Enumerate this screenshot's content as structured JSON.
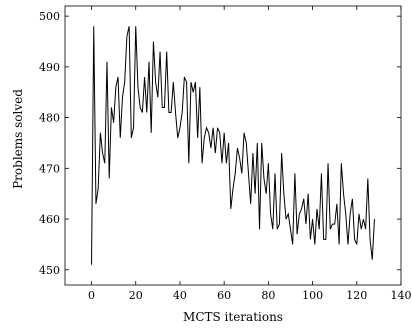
{
  "chart_data": {
    "type": "line",
    "title": "",
    "xlabel": "MCTS iterations",
    "ylabel": "Problems solved",
    "xlim": [
      -12,
      140
    ],
    "ylim": [
      447,
      502
    ],
    "xticks": [
      0,
      20,
      40,
      60,
      80,
      100,
      120,
      140
    ],
    "yticks": [
      450,
      460,
      470,
      480,
      490,
      500
    ],
    "grid": false,
    "series": [
      {
        "color": "#000000",
        "x": [
          0,
          1,
          2,
          3,
          4,
          5,
          6,
          7,
          8,
          9,
          10,
          11,
          12,
          13,
          14,
          15,
          16,
          17,
          18,
          19,
          20,
          21,
          22,
          23,
          24,
          25,
          26,
          27,
          28,
          29,
          30,
          31,
          32,
          33,
          34,
          35,
          36,
          37,
          38,
          39,
          40,
          41,
          42,
          43,
          44,
          45,
          46,
          47,
          48,
          49,
          50,
          51,
          52,
          53,
          54,
          55,
          56,
          57,
          58,
          59,
          60,
          61,
          62,
          63,
          64,
          65,
          66,
          67,
          68,
          69,
          70,
          71,
          72,
          73,
          74,
          75,
          76,
          77,
          78,
          79,
          80,
          81,
          82,
          83,
          84,
          85,
          86,
          87,
          88,
          89,
          90,
          91,
          92,
          93,
          94,
          95,
          96,
          97,
          98,
          99,
          100,
          101,
          102,
          103,
          104,
          105,
          106,
          107,
          108,
          109,
          110,
          111,
          112,
          113,
          114,
          115,
          116,
          117,
          118,
          119,
          120,
          121,
          122,
          123,
          124,
          125,
          126,
          127,
          128
        ],
        "y": [
          451,
          498,
          463,
          466,
          477,
          473,
          471,
          491,
          468,
          482,
          479,
          486,
          488,
          476,
          484,
          487,
          496,
          498,
          476,
          478,
          498,
          486,
          482,
          481,
          488,
          481,
          491,
          477,
          495,
          487,
          484,
          493,
          482,
          482,
          493,
          481,
          481,
          487,
          481,
          476,
          478,
          481,
          488,
          487,
          471,
          487,
          485,
          487,
          476,
          486,
          471,
          476,
          478,
          477,
          474,
          478,
          473,
          478,
          477,
          471,
          477,
          471,
          475,
          462,
          466,
          469,
          474,
          472,
          469,
          477,
          475,
          469,
          463,
          473,
          465,
          475,
          458,
          475,
          468,
          465,
          471,
          461,
          458,
          469,
          458,
          459,
          473,
          465,
          460,
          461,
          458,
          455,
          469,
          457,
          461,
          462,
          464,
          459,
          465,
          456,
          460,
          455,
          462,
          458,
          469,
          456,
          456,
          471,
          458,
          459,
          459,
          463,
          455,
          471,
          465,
          461,
          455,
          461,
          464,
          456,
          455,
          461,
          458,
          460,
          458,
          468,
          456,
          452,
          460
        ]
      }
    ]
  }
}
